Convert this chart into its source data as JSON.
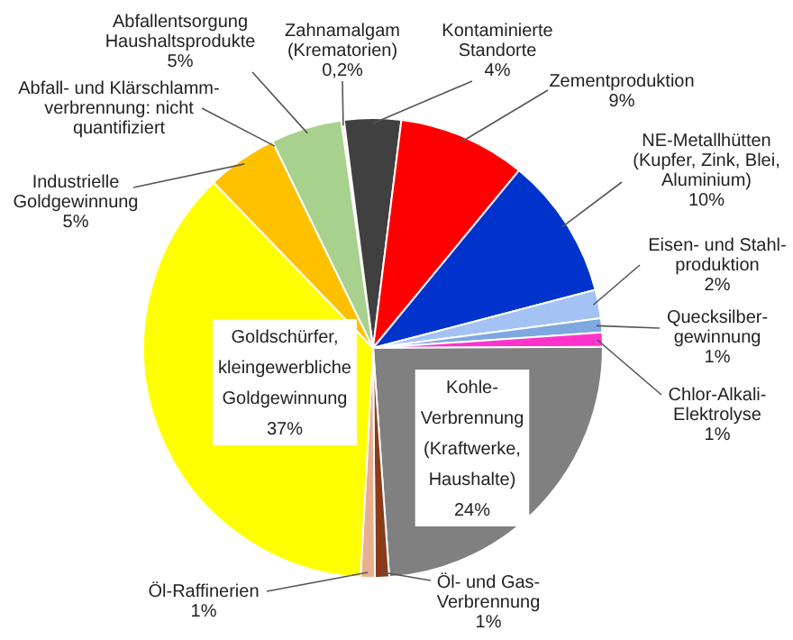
{
  "chart_data": {
    "type": "pie",
    "categories": [
      "Zahnamalgam\n(Krematorien)",
      "Kontaminierte\nStandorte",
      "Zementproduktion",
      "NE-Metallhütten\n(Kupfer, Zink, Blei,\nAluminium)",
      "Eisen- und Stahl-\nproduktion",
      "Quecksilber-\ngewinnung",
      "Chlor-Alkali-\nElektrolyse",
      "Kohle-\nVerbrennung\n(Kraftwerke,\nHaushalte)",
      "Öl- und Gas-\nVerbrennung",
      "Öl-Raffinerien",
      "Goldschürfer,\nkleingewerbliche\nGoldgewinnung",
      "Industrielle\nGoldgewinnung",
      "Abfall- und Klärschlamm-\nverbrennung: nicht\nquantifiziert",
      "Abfallentsorgung\nHaushaltsprodukte"
    ],
    "values": [
      0.2,
      4,
      9,
      10,
      2,
      1,
      1,
      24,
      1,
      1,
      37,
      5,
      null,
      5
    ],
    "value_labels": [
      "0,2%",
      "4%",
      "9%",
      "10%",
      "2%",
      "1%",
      "1%",
      "24%",
      "1%",
      "1%",
      "37%",
      "5%",
      null,
      "5%"
    ],
    "colors": [
      "#e8e8e8",
      "#404040",
      "#ff0000",
      "#0033cc",
      "#a4c2f4",
      "#7fa7e0",
      "#ff33cc",
      "#808080",
      "#8b3a1a",
      "#e8b090",
      "#ffff00",
      "#ffc000",
      "#ffffff",
      "#a9d18e"
    ]
  }
}
